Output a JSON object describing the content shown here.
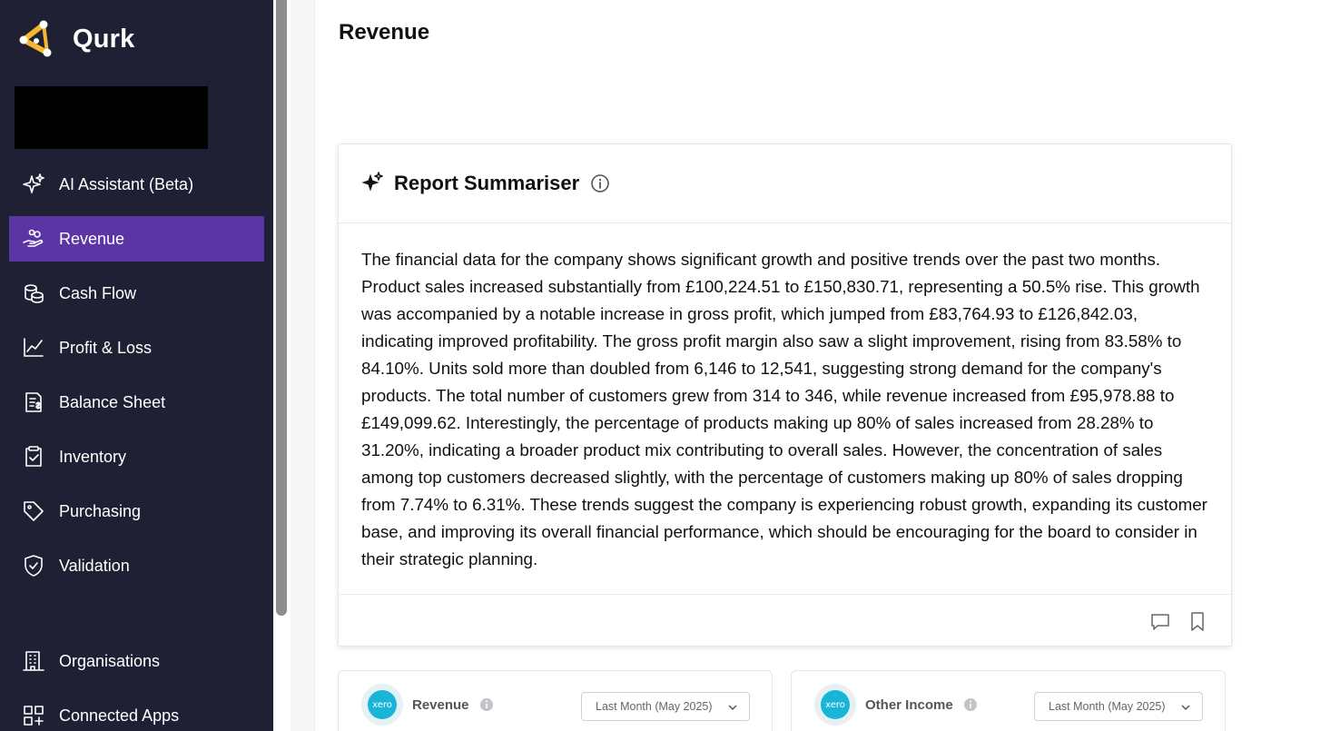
{
  "app": {
    "name": "Qurk"
  },
  "sidebar": {
    "items": [
      {
        "label": "AI Assistant (Beta)",
        "icon": "sparkles-icon",
        "active": false
      },
      {
        "label": "Revenue",
        "icon": "hand-coins-icon",
        "active": true
      },
      {
        "label": "Cash Flow",
        "icon": "coins-icon",
        "active": false
      },
      {
        "label": "Profit & Loss",
        "icon": "line-chart-icon",
        "active": false
      },
      {
        "label": "Balance Sheet",
        "icon": "receipt-icon",
        "active": false
      },
      {
        "label": "Inventory",
        "icon": "clipboard-check-icon",
        "active": false
      },
      {
        "label": "Purchasing",
        "icon": "tag-icon",
        "active": false
      },
      {
        "label": "Validation",
        "icon": "shield-check-icon",
        "active": false
      }
    ],
    "bottom_items": [
      {
        "label": "Organisations",
        "icon": "building-icon"
      },
      {
        "label": "Connected Apps",
        "icon": "apps-grid-icon"
      }
    ]
  },
  "page": {
    "title": "Revenue"
  },
  "summariser": {
    "title": "Report Summariser",
    "text": "The financial data for the company shows significant growth and positive trends over the past two months. Product sales increased substantially from £100,224.51 to £150,830.71, representing a 50.5% rise. This growth was accompanied by a notable increase in gross profit, which jumped from £83,764.93 to £126,842.03, indicating improved profitability. The gross profit margin also saw a slight improvement, rising from 83.58% to 84.10%. Units sold more than doubled from 6,146 to 12,541, suggesting strong demand for the company's products. The total number of customers grew from 314 to 346, while revenue increased from £95,978.88 to £149,099.62. Interestingly, the percentage of products making up 80% of sales increased from 28.28% to 31.20%, indicating a broader product mix contributing to overall sales. However, the concentration of sales among top customers decreased slightly, with the percentage of customers making up 80% of sales dropping from 7.74% to 6.31%. These trends suggest the company is experiencing robust growth, expanding its customer base, and improving its overall financial performance, which should be encouraging for the board to consider in their strategic planning."
  },
  "widgets": [
    {
      "logo_text": "xero",
      "label": "Revenue",
      "period": "Last Month (May 2025)"
    },
    {
      "logo_text": "xero",
      "label": "Other Income",
      "period": "Last Month (May 2025)"
    }
  ],
  "colors": {
    "sidebar_bg": "#1f2033",
    "active_bg": "#5a35a3",
    "logo_accent": "#f5b82e",
    "xero_blue": "#1ab4d7"
  }
}
